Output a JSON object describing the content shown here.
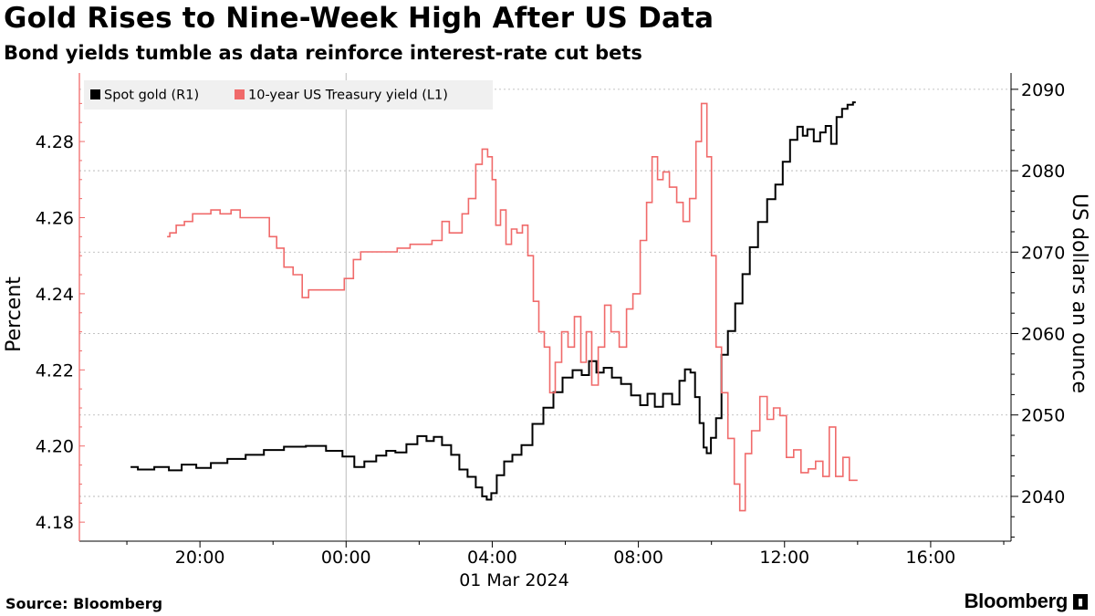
{
  "header": {
    "title": "Gold Rises to Nine-Week High After US Data",
    "subtitle": "Bond yields tumble as data reinforce interest-rate cut bets"
  },
  "footer": {
    "source": "Source: Bloomberg",
    "brand": "Bloomberg",
    "brand_icon": "bloomberg-chart-icon"
  },
  "colors": {
    "gold": "#000000",
    "yield": "#f06a6a",
    "grid": "#b0b0b0",
    "axis": "#f06a6a"
  },
  "chart_data": {
    "type": "line",
    "title": "Gold Rises to Nine-Week High After US Data",
    "subtitle": "Bond yields tumble as data reinforce interest-rate cut bets",
    "xlabel": "01 Mar 2024",
    "x_unit": "hours relative to 00:00 on 01 Mar 2024",
    "xlim": [
      -7.3,
      18.2
    ],
    "x_ticks": [
      -4,
      0,
      4,
      8,
      12,
      16
    ],
    "x_tick_labels": [
      "20:00",
      "00:00",
      "04:00",
      "08:00",
      "12:00",
      "16:00"
    ],
    "x_date_label": "01 Mar 2024",
    "left_axis": {
      "label": "Percent",
      "ylim": [
        4.175,
        4.298
      ],
      "ticks": [
        4.18,
        4.2,
        4.22,
        4.24,
        4.26,
        4.28
      ],
      "tick_labels": [
        "4.18",
        "4.20",
        "4.22",
        "4.24",
        "4.26",
        "4.28"
      ]
    },
    "right_axis": {
      "label": "US dollars an ounce",
      "ylim": [
        2034.5,
        2092
      ],
      "ticks": [
        2040,
        2050,
        2060,
        2070,
        2080,
        2090
      ],
      "tick_labels": [
        "2040",
        "2050",
        "2060",
        "2070",
        "2080",
        "2090"
      ]
    },
    "legend": {
      "position": "top-left",
      "entries": [
        "Spot gold (R1)",
        "10-year US Treasury yield (L1)"
      ]
    },
    "series": [
      {
        "name": "Spot gold (R1)",
        "axis": "right",
        "color": "#000000",
        "points": [
          [
            -5.9,
            2043.6
          ],
          [
            -5.5,
            2043.3
          ],
          [
            -5.0,
            2043.6
          ],
          [
            -4.7,
            2043.2
          ],
          [
            -4.3,
            2043.9
          ],
          [
            -3.9,
            2043.5
          ],
          [
            -3.5,
            2044.1
          ],
          [
            -3.0,
            2044.6
          ],
          [
            -2.5,
            2045.1
          ],
          [
            -2.0,
            2045.7
          ],
          [
            -1.4,
            2046.1
          ],
          [
            -0.8,
            2046.2
          ],
          [
            -0.3,
            2045.6
          ],
          [
            0.1,
            2044.9
          ],
          [
            0.35,
            2043.6
          ],
          [
            0.65,
            2044.3
          ],
          [
            1.0,
            2045.0
          ],
          [
            1.2,
            2045.6
          ],
          [
            1.5,
            2045.4
          ],
          [
            1.8,
            2046.4
          ],
          [
            2.1,
            2047.4
          ],
          [
            2.3,
            2046.8
          ],
          [
            2.5,
            2047.3
          ],
          [
            2.75,
            2046.3
          ],
          [
            3.0,
            2045.1
          ],
          [
            3.2,
            2043.3
          ],
          [
            3.45,
            2042.4
          ],
          [
            3.65,
            2041.1
          ],
          [
            3.8,
            2040.0
          ],
          [
            3.9,
            2039.6
          ],
          [
            4.05,
            2040.4
          ],
          [
            4.2,
            2042.6
          ],
          [
            4.45,
            2044.3
          ],
          [
            4.65,
            2045.1
          ],
          [
            4.95,
            2046.3
          ],
          [
            5.25,
            2048.9
          ],
          [
            5.55,
            2050.9
          ],
          [
            5.8,
            2052.8
          ],
          [
            6.05,
            2054.6
          ],
          [
            6.35,
            2055.5
          ],
          [
            6.55,
            2054.9
          ],
          [
            6.75,
            2056.6
          ],
          [
            6.95,
            2055.2
          ],
          [
            7.15,
            2055.8
          ],
          [
            7.4,
            2054.6
          ],
          [
            7.65,
            2053.8
          ],
          [
            7.95,
            2052.4
          ],
          [
            8.15,
            2051.2
          ],
          [
            8.35,
            2052.6
          ],
          [
            8.55,
            2051.0
          ],
          [
            8.8,
            2052.6
          ],
          [
            9.05,
            2051.3
          ],
          [
            9.2,
            2054.2
          ],
          [
            9.35,
            2055.6
          ],
          [
            9.5,
            2055.2
          ],
          [
            9.6,
            2052.2
          ],
          [
            9.75,
            2049.0
          ],
          [
            9.82,
            2046.0
          ],
          [
            9.92,
            2045.3
          ],
          [
            10.05,
            2047.2
          ],
          [
            10.2,
            2049.6
          ],
          [
            10.35,
            2057.4
          ],
          [
            10.55,
            2060.3
          ],
          [
            10.75,
            2063.7
          ],
          [
            10.95,
            2067.3
          ],
          [
            11.15,
            2070.6
          ],
          [
            11.4,
            2073.7
          ],
          [
            11.65,
            2076.5
          ],
          [
            11.85,
            2078.3
          ],
          [
            12.05,
            2081.1
          ],
          [
            12.25,
            2083.8
          ],
          [
            12.45,
            2085.4
          ],
          [
            12.55,
            2084.3
          ],
          [
            12.7,
            2085.1
          ],
          [
            12.9,
            2083.6
          ],
          [
            13.05,
            2084.7
          ],
          [
            13.2,
            2085.5
          ],
          [
            13.35,
            2083.3
          ],
          [
            13.5,
            2086.6
          ],
          [
            13.65,
            2087.6
          ],
          [
            13.8,
            2088.1
          ],
          [
            13.95,
            2088.4
          ]
        ]
      },
      {
        "name": "10-year US Treasury yield (L1)",
        "axis": "left",
        "color": "#f06a6a",
        "points": [
          [
            -4.9,
            4.255
          ],
          [
            -4.75,
            4.256
          ],
          [
            -4.55,
            4.258
          ],
          [
            -4.3,
            4.259
          ],
          [
            -4.1,
            4.261
          ],
          [
            -3.8,
            4.261
          ],
          [
            -3.6,
            4.262
          ],
          [
            -3.3,
            4.261
          ],
          [
            -3.0,
            4.262
          ],
          [
            -2.8,
            4.26
          ],
          [
            -2.5,
            4.26
          ],
          [
            -2.2,
            4.26
          ],
          [
            -2.0,
            4.255
          ],
          [
            -1.8,
            4.252
          ],
          [
            -1.6,
            4.247
          ],
          [
            -1.3,
            4.245
          ],
          [
            -1.1,
            4.239
          ],
          [
            -0.95,
            4.241
          ],
          [
            -0.6,
            4.241
          ],
          [
            -0.2,
            4.241
          ],
          [
            0.1,
            4.244
          ],
          [
            0.3,
            4.249
          ],
          [
            0.5,
            4.251
          ],
          [
            0.8,
            4.251
          ],
          [
            1.2,
            4.251
          ],
          [
            1.6,
            4.252
          ],
          [
            1.9,
            4.253
          ],
          [
            2.2,
            4.253
          ],
          [
            2.5,
            4.254
          ],
          [
            2.75,
            4.259
          ],
          [
            2.9,
            4.256
          ],
          [
            3.1,
            4.256
          ],
          [
            3.25,
            4.261
          ],
          [
            3.45,
            4.265
          ],
          [
            3.65,
            4.274
          ],
          [
            3.8,
            4.278
          ],
          [
            3.95,
            4.276
          ],
          [
            4.05,
            4.27
          ],
          [
            4.15,
            4.258
          ],
          [
            4.3,
            4.262
          ],
          [
            4.45,
            4.253
          ],
          [
            4.6,
            4.257
          ],
          [
            4.75,
            4.256
          ],
          [
            4.9,
            4.258
          ],
          [
            5.05,
            4.25
          ],
          [
            5.2,
            4.238
          ],
          [
            5.35,
            4.23
          ],
          [
            5.5,
            4.226
          ],
          [
            5.65,
            4.214
          ],
          [
            5.8,
            4.222
          ],
          [
            6.0,
            4.23
          ],
          [
            6.15,
            4.226
          ],
          [
            6.35,
            4.234
          ],
          [
            6.5,
            4.222
          ],
          [
            6.65,
            4.23
          ],
          [
            6.8,
            4.216
          ],
          [
            7.0,
            4.226
          ],
          [
            7.15,
            4.237
          ],
          [
            7.35,
            4.23
          ],
          [
            7.6,
            4.226
          ],
          [
            7.75,
            4.236
          ],
          [
            7.95,
            4.24
          ],
          [
            8.15,
            4.254
          ],
          [
            8.3,
            4.264
          ],
          [
            8.45,
            4.276
          ],
          [
            8.6,
            4.27
          ],
          [
            8.75,
            4.272
          ],
          [
            8.95,
            4.268
          ],
          [
            9.15,
            4.264
          ],
          [
            9.3,
            4.259
          ],
          [
            9.5,
            4.265
          ],
          [
            9.65,
            4.28
          ],
          [
            9.8,
            4.29
          ],
          [
            9.95,
            4.276
          ],
          [
            10.05,
            4.25
          ],
          [
            10.2,
            4.226
          ],
          [
            10.35,
            4.214
          ],
          [
            10.55,
            4.202
          ],
          [
            10.7,
            4.19
          ],
          [
            10.85,
            4.183
          ],
          [
            11.0,
            4.198
          ],
          [
            11.2,
            4.204
          ],
          [
            11.45,
            4.213
          ],
          [
            11.6,
            4.207
          ],
          [
            11.8,
            4.21
          ],
          [
            11.95,
            4.208
          ],
          [
            12.15,
            4.197
          ],
          [
            12.35,
            4.199
          ],
          [
            12.55,
            4.193
          ],
          [
            12.75,
            4.194
          ],
          [
            12.95,
            4.196
          ],
          [
            13.15,
            4.192
          ],
          [
            13.3,
            4.205
          ],
          [
            13.5,
            4.192
          ],
          [
            13.7,
            4.197
          ],
          [
            13.85,
            4.191
          ],
          [
            14.0,
            4.191
          ]
        ]
      }
    ]
  }
}
